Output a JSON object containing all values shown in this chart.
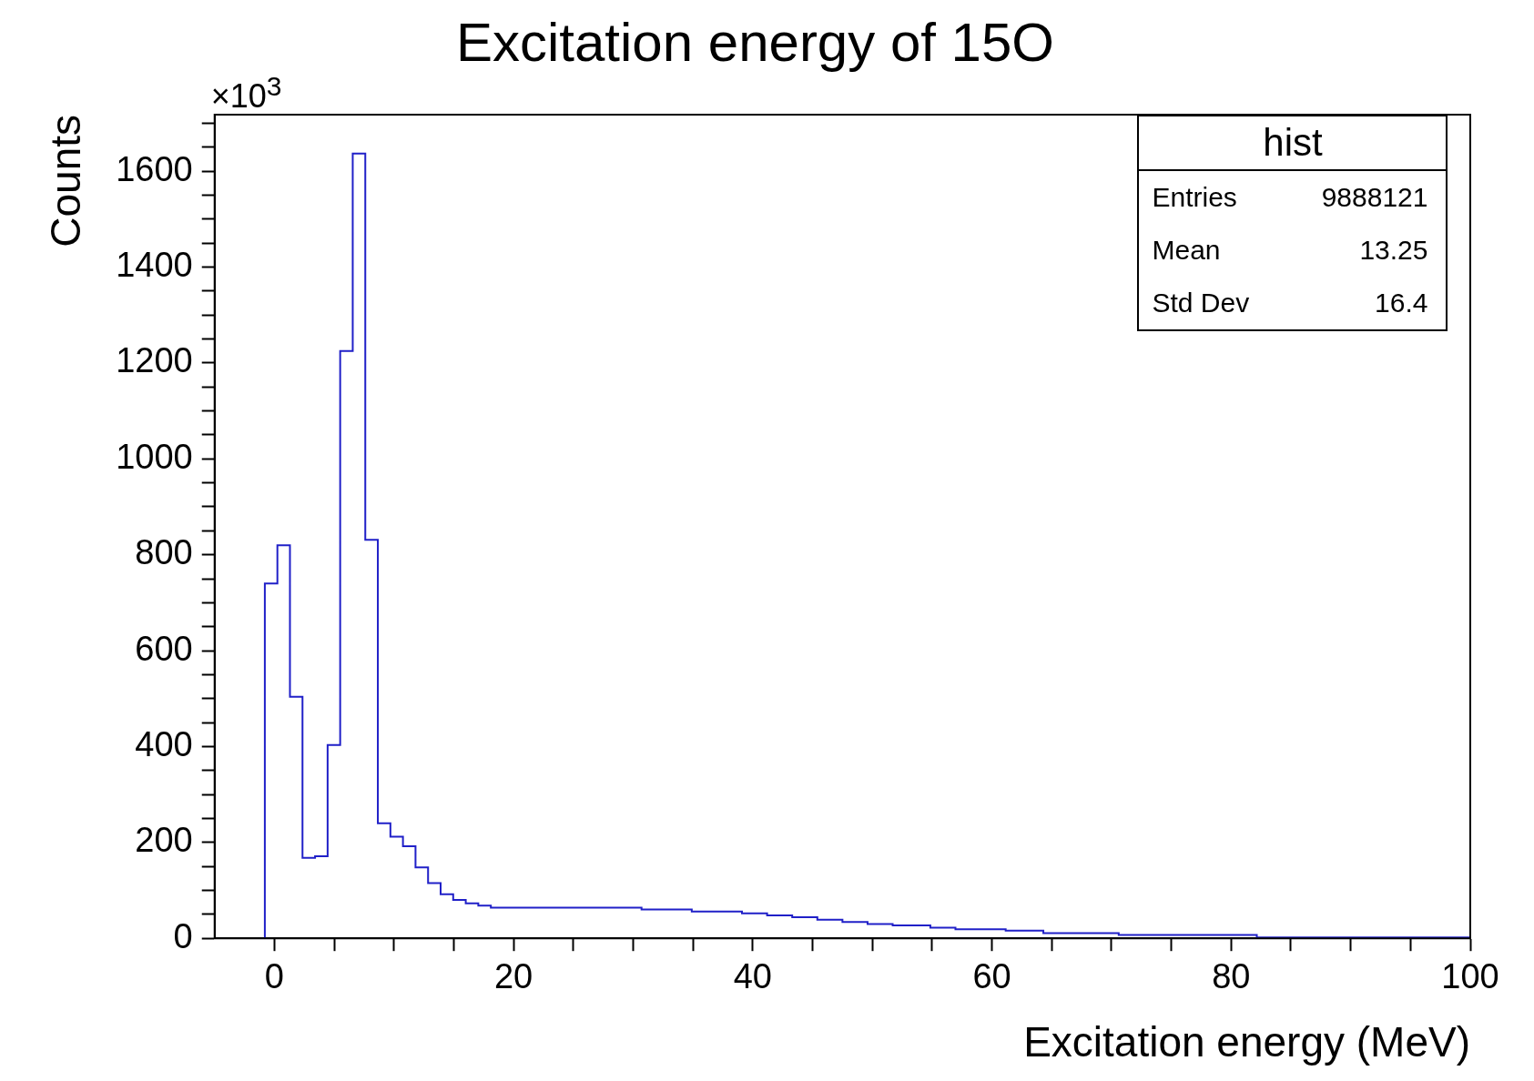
{
  "chart_data": {
    "type": "histogram",
    "title": "Excitation energy of 15O",
    "xlabel": "Excitation energy (MeV)",
    "ylabel": "Counts",
    "bins": [
      -0.8,
      0.25,
      1.3,
      2.35,
      3.4,
      4.45,
      5.5,
      6.55,
      7.6,
      8.65,
      9.7,
      10.75,
      11.8,
      12.85,
      13.9,
      14.95,
      16,
      17.05,
      18.1,
      30.7,
      34.9,
      39.1,
      41.2,
      43.3,
      45.4,
      47.5,
      49.6,
      51.7,
      54.85,
      56.95,
      61.15,
      64.3,
      70.6,
      82.15,
      100
    ],
    "values": [
      740,
      820,
      504,
      168,
      171,
      403,
      1225,
      1637,
      831,
      240,
      212,
      192,
      148,
      115,
      92,
      80,
      73,
      68,
      64,
      60,
      56,
      52,
      48,
      44,
      39,
      34,
      30,
      27,
      22,
      19,
      16,
      11,
      7,
      2
    ],
    "color": "#2020c8",
    "xlim": [
      -5,
      100
    ],
    "ylim": [
      0,
      1718
    ],
    "xticks": [
      0,
      {
        "value": 5,
        "label": null
      },
      {
        "value": 10,
        "label": null
      },
      {
        "value": 15,
        "label": null
      },
      20,
      {
        "value": 25,
        "label": null
      },
      {
        "value": 30,
        "label": null
      },
      {
        "value": 35,
        "label": null
      },
      40,
      {
        "value": 45,
        "label": null
      },
      {
        "value": 50,
        "label": null
      },
      {
        "value": 55,
        "label": null
      },
      60,
      {
        "value": 65,
        "label": null
      },
      {
        "value": 70,
        "label": null
      },
      {
        "value": 75,
        "label": null
      },
      80,
      {
        "value": 85,
        "label": null
      },
      {
        "value": 90,
        "label": null
      },
      {
        "value": 95,
        "label": null
      },
      100
    ],
    "yticks": [
      0,
      {
        "value": 50,
        "label": null
      },
      {
        "value": 100,
        "label": null
      },
      {
        "value": 150,
        "label": null
      },
      200,
      {
        "value": 250,
        "label": null
      },
      {
        "value": 300,
        "label": null
      },
      {
        "value": 350,
        "label": null
      },
      400,
      {
        "value": 450,
        "label": null
      },
      {
        "value": 500,
        "label": null
      },
      {
        "value": 550,
        "label": null
      },
      600,
      {
        "value": 650,
        "label": null
      },
      {
        "value": 700,
        "label": null
      },
      {
        "value": 750,
        "label": null
      },
      800,
      {
        "value": 850,
        "label": null
      },
      {
        "value": 900,
        "label": null
      },
      {
        "value": 950,
        "label": null
      },
      1000,
      {
        "value": 1050,
        "label": null
      },
      {
        "value": 1100,
        "label": null
      },
      {
        "value": 1150,
        "label": null
      },
      1200,
      {
        "value": 1250,
        "label": null
      },
      {
        "value": 1300,
        "label": null
      },
      {
        "value": 1350,
        "label": null
      },
      1400,
      {
        "value": 1450,
        "label": null
      },
      {
        "value": 1500,
        "label": null
      },
      {
        "value": 1550,
        "label": null
      },
      1600,
      {
        "value": 1650,
        "label": null
      },
      {
        "value": 1700,
        "label": null
      }
    ],
    "annotations": [
      "×10$^{3}$",
      "hist",
      "Entries",
      "9888121",
      "Mean",
      "13.25",
      "Std Dev",
      "16.4"
    ]
  }
}
